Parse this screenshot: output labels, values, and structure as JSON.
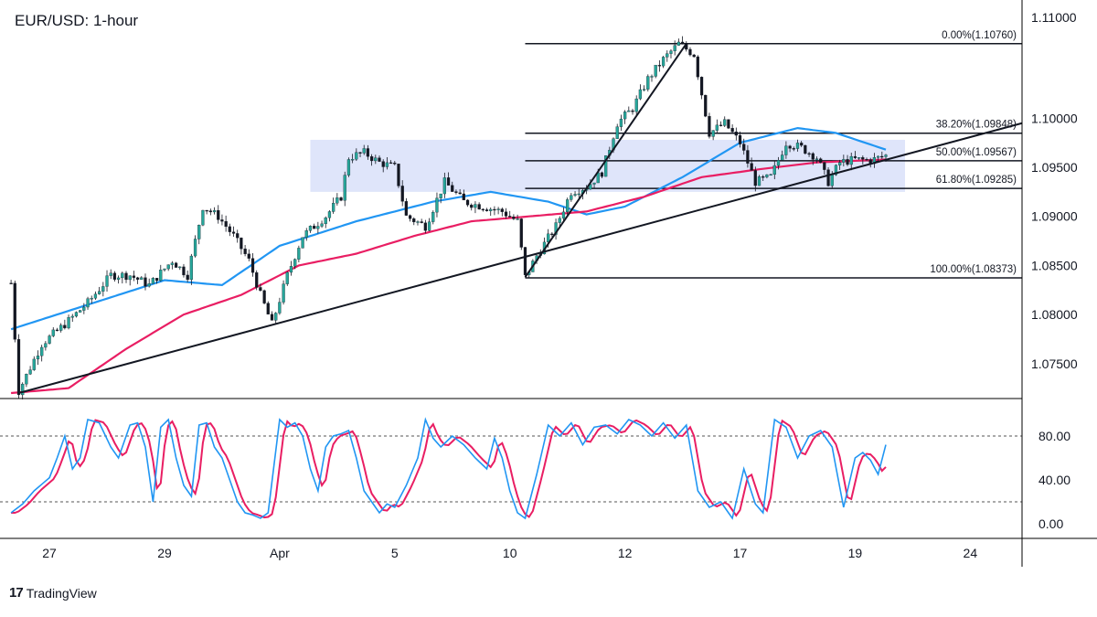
{
  "chart_data": {
    "type": "candlestick",
    "title": "EUR/USD: 1-hour",
    "price_axis": {
      "ylim": [
        1.072,
        1.11
      ],
      "ticks": [
        {
          "value": 1.1,
          "label": "1.10000"
        },
        {
          "value": 1.095,
          "label": "1.09500"
        },
        {
          "value": 1.09,
          "label": "1.09000"
        },
        {
          "value": 1.085,
          "label": "1.08500"
        },
        {
          "value": 1.08,
          "label": "1.08000"
        },
        {
          "value": 1.075,
          "label": "1.07500"
        }
      ],
      "top_label": "1.11000"
    },
    "time_axis": {
      "ticks": [
        {
          "label": "27",
          "bar": 10
        },
        {
          "label": "29",
          "bar": 40
        },
        {
          "label": "Apr",
          "bar": 70
        },
        {
          "label": "5",
          "bar": 100
        },
        {
          "label": "10",
          "bar": 130
        },
        {
          "label": "12",
          "bar": 160
        },
        {
          "label": "17",
          "bar": 190
        },
        {
          "label": "19",
          "bar": 220
        },
        {
          "label": "24",
          "bar": 250
        }
      ]
    },
    "bar_count": 264,
    "last_bar": 228,
    "price_path": [
      [
        0,
        1.0832
      ],
      [
        2,
        1.0722
      ],
      [
        8,
        1.077
      ],
      [
        14,
        1.079
      ],
      [
        20,
        1.0812
      ],
      [
        26,
        1.084
      ],
      [
        31,
        1.084
      ],
      [
        36,
        1.083
      ],
      [
        42,
        1.0855
      ],
      [
        46,
        1.084
      ],
      [
        50,
        1.091
      ],
      [
        54,
        1.09
      ],
      [
        58,
        1.088
      ],
      [
        62,
        1.0855
      ],
      [
        65,
        1.082
      ],
      [
        68,
        1.079
      ],
      [
        72,
        1.084
      ],
      [
        76,
        1.088
      ],
      [
        82,
        1.09
      ],
      [
        86,
        1.092
      ],
      [
        88,
        1.096
      ],
      [
        92,
        1.0965
      ],
      [
        96,
        1.0955
      ],
      [
        100,
        1.095
      ],
      [
        103,
        1.09
      ],
      [
        108,
        1.089
      ],
      [
        113,
        1.0935
      ],
      [
        118,
        1.0915
      ],
      [
        123,
        1.091
      ],
      [
        128,
        1.0905
      ],
      [
        132,
        1.0895
      ],
      [
        134,
        1.0838
      ],
      [
        137,
        1.086
      ],
      [
        142,
        1.089
      ],
      [
        146,
        1.0925
      ],
      [
        150,
        1.093
      ],
      [
        154,
        1.0945
      ],
      [
        158,
        1.0995
      ],
      [
        162,
        1.101
      ],
      [
        166,
        1.104
      ],
      [
        170,
        1.106
      ],
      [
        174,
        1.1076
      ],
      [
        178,
        1.1065
      ],
      [
        182,
        1.0985
      ],
      [
        186,
        1.0995
      ],
      [
        190,
        1.0975
      ],
      [
        194,
        1.0935
      ],
      [
        198,
        1.094
      ],
      [
        202,
        1.0975
      ],
      [
        206,
        1.097
      ],
      [
        210,
        1.096
      ],
      [
        213,
        1.0935
      ],
      [
        216,
        1.0955
      ],
      [
        220,
        1.0958
      ],
      [
        224,
        1.0957
      ],
      [
        228,
        1.0962
      ]
    ],
    "moving_averages": [
      {
        "color": "#2196f3",
        "path": [
          [
            0,
            1.0785
          ],
          [
            20,
            1.081
          ],
          [
            40,
            1.0835
          ],
          [
            55,
            1.083
          ],
          [
            70,
            1.087
          ],
          [
            90,
            1.0895
          ],
          [
            110,
            1.0915
          ],
          [
            125,
            1.0925
          ],
          [
            140,
            1.0915
          ],
          [
            150,
            1.0902
          ],
          [
            160,
            1.091
          ],
          [
            175,
            1.094
          ],
          [
            190,
            1.0975
          ],
          [
            205,
            1.099
          ],
          [
            215,
            1.0985
          ],
          [
            228,
            1.0968
          ]
        ]
      },
      {
        "color": "#e91e63",
        "path": [
          [
            0,
            1.072
          ],
          [
            15,
            1.0725
          ],
          [
            30,
            1.0765
          ],
          [
            45,
            1.08
          ],
          [
            60,
            1.082
          ],
          [
            75,
            1.085
          ],
          [
            90,
            1.0862
          ],
          [
            105,
            1.088
          ],
          [
            120,
            1.0895
          ],
          [
            135,
            1.09
          ],
          [
            150,
            1.0905
          ],
          [
            165,
            1.092
          ],
          [
            180,
            1.094
          ],
          [
            195,
            1.0948
          ],
          [
            210,
            1.0955
          ],
          [
            228,
            1.0958
          ]
        ]
      }
    ],
    "trendlines": [
      {
        "color": "#131722",
        "from": [
          2,
          1.072
        ],
        "to": [
          264,
          1.0995
        ]
      },
      {
        "color": "#131722",
        "from": [
          134,
          1.0838
        ],
        "to": [
          176,
          1.1076
        ]
      }
    ],
    "rectangle": {
      "color": "#c5cff5",
      "x0": 78,
      "x1": 233,
      "y0": 1.0925,
      "y1": 1.0978
    },
    "fib_levels": [
      {
        "label": "0.00%(1.10760)",
        "value": 1.1076
      },
      {
        "label": "38.20%(1.09848)",
        "value": 1.09848
      },
      {
        "label": "50.00%(1.09567)",
        "value": 1.09567
      },
      {
        "label": "61.80%(1.09285)",
        "value": 1.09285
      },
      {
        "label": "100.00%(1.08373)",
        "value": 1.08373
      }
    ],
    "fib_range": {
      "x0": 134,
      "x1": 264
    },
    "oscillator": {
      "ylim": [
        0,
        105
      ],
      "levels": [
        80,
        20
      ],
      "ticks": [
        {
          "value": 80,
          "label": "80.00"
        },
        {
          "value": 40,
          "label": "40.00"
        },
        {
          "value": 0,
          "label": "0.00"
        }
      ],
      "k_color": "#2196f3",
      "d_color": "#e91e63",
      "k_path": [
        [
          0,
          10
        ],
        [
          3,
          18
        ],
        [
          6,
          30
        ],
        [
          10,
          42
        ],
        [
          12,
          60
        ],
        [
          14,
          80
        ],
        [
          16,
          50
        ],
        [
          18,
          60
        ],
        [
          20,
          95
        ],
        [
          23,
          92
        ],
        [
          26,
          70
        ],
        [
          28,
          60
        ],
        [
          31,
          90
        ],
        [
          33,
          92
        ],
        [
          35,
          70
        ],
        [
          37,
          20
        ],
        [
          39,
          88
        ],
        [
          41,
          95
        ],
        [
          43,
          60
        ],
        [
          45,
          35
        ],
        [
          47,
          25
        ],
        [
          49,
          90
        ],
        [
          51,
          92
        ],
        [
          53,
          70
        ],
        [
          55,
          60
        ],
        [
          57,
          40
        ],
        [
          59,
          20
        ],
        [
          61,
          10
        ],
        [
          63,
          8
        ],
        [
          65,
          5
        ],
        [
          67,
          10
        ],
        [
          70,
          95
        ],
        [
          72,
          88
        ],
        [
          74,
          92
        ],
        [
          76,
          80
        ],
        [
          78,
          50
        ],
        [
          80,
          30
        ],
        [
          82,
          70
        ],
        [
          84,
          80
        ],
        [
          86,
          82
        ],
        [
          88,
          85
        ],
        [
          90,
          60
        ],
        [
          92,
          30
        ],
        [
          94,
          20
        ],
        [
          96,
          10
        ],
        [
          98,
          18
        ],
        [
          100,
          15
        ],
        [
          103,
          35
        ],
        [
          106,
          60
        ],
        [
          108,
          95
        ],
        [
          110,
          78
        ],
        [
          112,
          70
        ],
        [
          115,
          80
        ],
        [
          118,
          72
        ],
        [
          121,
          60
        ],
        [
          124,
          50
        ],
        [
          126,
          78
        ],
        [
          128,
          60
        ],
        [
          130,
          30
        ],
        [
          132,
          10
        ],
        [
          134,
          5
        ],
        [
          137,
          45
        ],
        [
          140,
          90
        ],
        [
          143,
          80
        ],
        [
          146,
          92
        ],
        [
          149,
          72
        ],
        [
          152,
          88
        ],
        [
          155,
          90
        ],
        [
          158,
          82
        ],
        [
          161,
          95
        ],
        [
          164,
          90
        ],
        [
          167,
          80
        ],
        [
          170,
          92
        ],
        [
          173,
          78
        ],
        [
          176,
          90
        ],
        [
          179,
          30
        ],
        [
          182,
          15
        ],
        [
          185,
          20
        ],
        [
          188,
          5
        ],
        [
          191,
          50
        ],
        [
          194,
          18
        ],
        [
          196,
          10
        ],
        [
          199,
          95
        ],
        [
          202,
          88
        ],
        [
          205,
          60
        ],
        [
          208,
          80
        ],
        [
          211,
          85
        ],
        [
          214,
          70
        ],
        [
          217,
          15
        ],
        [
          220,
          60
        ],
        [
          222,
          65
        ],
        [
          224,
          58
        ],
        [
          226,
          45
        ],
        [
          228,
          72
        ]
      ]
    }
  },
  "footer": {
    "brand": "TradingView",
    "logo_text": "17"
  }
}
